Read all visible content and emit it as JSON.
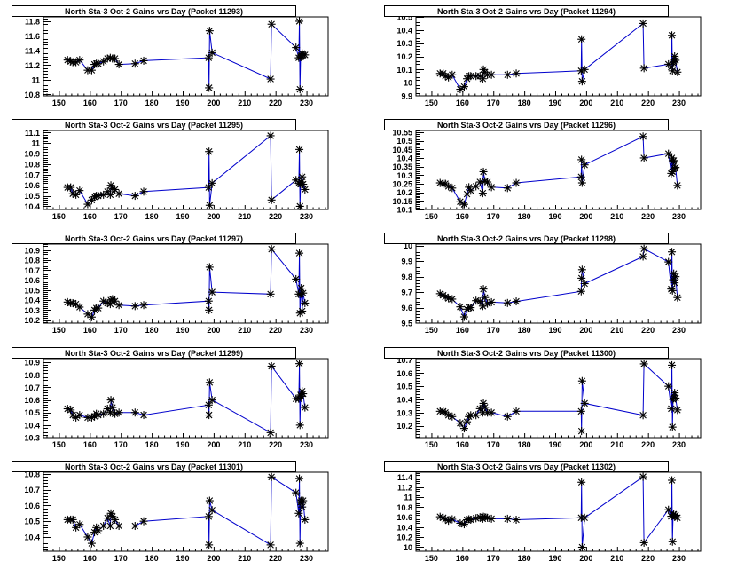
{
  "chart_data": [
    {
      "type": "line",
      "title": "North Sta-3 Oct-2 Gains vrs Day (Packet 11293)",
      "xlabel": "",
      "ylabel": "",
      "xlim": [
        145,
        237
      ],
      "ylim": [
        10.78,
        11.86
      ],
      "xticks": [
        150,
        160,
        170,
        180,
        190,
        200,
        210,
        220,
        230
      ],
      "yticks": [
        10.8,
        11,
        11.2,
        11.4,
        11.6,
        11.8
      ],
      "ytick_labels": [
        "10.8",
        "11",
        "11.2",
        "11.4",
        "11.6",
        "11.8"
      ],
      "line_color": "#0000cc",
      "marker": "asterisk",
      "x": [
        152.8,
        153.8,
        154.5,
        155.5,
        156.7,
        159.3,
        160.6,
        161.5,
        162.1,
        162.7,
        164.4,
        165.7,
        166.6,
        167.3,
        168.1,
        169.4,
        174.6,
        177.4,
        198.4,
        198.5,
        198.7,
        199.5,
        218.4,
        218.7,
        226.6,
        227.5,
        227.7,
        227.9,
        228.1,
        228.3,
        228.6,
        228.9,
        229.5
      ],
      "y": [
        11.27,
        11.25,
        11.24,
        11.24,
        11.27,
        11.13,
        11.13,
        11.21,
        11.22,
        11.22,
        11.25,
        11.29,
        11.3,
        11.29,
        11.29,
        11.21,
        11.22,
        11.26,
        11.3,
        10.89,
        11.67,
        11.37,
        11.01,
        11.76,
        11.44,
        11.3,
        11.8,
        10.87,
        11.31,
        11.33,
        11.36,
        11.34,
        11.34
      ]
    },
    {
      "type": "line",
      "title": "North Sta-3 Oct-2 Gains vrs Day (Packet 11294)",
      "xlabel": "",
      "ylabel": "",
      "xlim": [
        145,
        237
      ],
      "ylim": [
        9.9,
        10.5
      ],
      "xticks": [
        150,
        160,
        170,
        180,
        190,
        200,
        210,
        220,
        230
      ],
      "yticks": [
        9.9,
        10,
        10.1,
        10.2,
        10.3,
        10.4,
        10.5
      ],
      "ytick_labels": [
        "9.9",
        "10",
        "10.1",
        "10.2",
        "10.3",
        "10.4",
        "10.5"
      ],
      "line_color": "#0000cc",
      "marker": "asterisk",
      "x": [
        152.8,
        153.8,
        154.5,
        155.5,
        156.7,
        159.3,
        160.6,
        161.5,
        162.1,
        162.7,
        164.4,
        165.7,
        166.6,
        166.8,
        167.3,
        168.1,
        169.4,
        174.6,
        177.4,
        198.4,
        198.5,
        198.7,
        199.5,
        218.4,
        218.7,
        226.6,
        227.5,
        227.7,
        227.9,
        228.1,
        228.3,
        228.6,
        228.9,
        229.5
      ],
      "y": [
        10.07,
        10.07,
        10.05,
        10.04,
        10.06,
        9.95,
        9.97,
        10.03,
        10.05,
        10.05,
        10.05,
        10.05,
        10.03,
        10.1,
        10.08,
        10.06,
        10.06,
        10.06,
        10.07,
        10.09,
        10.33,
        10.01,
        10.1,
        10.45,
        10.11,
        10.14,
        10.12,
        10.36,
        10.09,
        10.15,
        10.16,
        10.2,
        10.17,
        10.08
      ]
    },
    {
      "type": "line",
      "title": "North Sta-3 Oct-2 Gains vrs Day (Packet 11295)",
      "xlabel": "",
      "ylabel": "",
      "xlim": [
        145,
        237
      ],
      "ylim": [
        10.37,
        11.12
      ],
      "xticks": [
        150,
        160,
        170,
        180,
        190,
        200,
        210,
        220,
        230
      ],
      "yticks": [
        10.4,
        10.5,
        10.6,
        10.7,
        10.8,
        10.9,
        11,
        11.1
      ],
      "ytick_labels": [
        "10.4",
        "10.5",
        "10.6",
        "10.7",
        "10.8",
        "10.9",
        "11",
        "11.1"
      ],
      "line_color": "#0000cc",
      "marker": "asterisk",
      "x": [
        152.8,
        153.8,
        154.5,
        155.5,
        156.7,
        159.3,
        160.6,
        161.5,
        162.1,
        162.7,
        164.4,
        165.7,
        166.6,
        166.8,
        167.3,
        168.1,
        169.4,
        174.6,
        177.4,
        198.4,
        198.5,
        198.7,
        199.5,
        218.4,
        218.7,
        226.6,
        227.5,
        227.7,
        227.9,
        228.1,
        228.3,
        228.6,
        228.9,
        229.5
      ],
      "y": [
        10.58,
        10.58,
        10.52,
        10.51,
        10.55,
        10.42,
        10.46,
        10.49,
        10.5,
        10.5,
        10.51,
        10.54,
        10.51,
        10.6,
        10.57,
        10.56,
        10.52,
        10.5,
        10.54,
        10.58,
        10.92,
        10.41,
        10.62,
        11.07,
        10.46,
        10.65,
        10.62,
        10.94,
        10.4,
        10.61,
        10.63,
        10.68,
        10.61,
        10.56
      ]
    },
    {
      "type": "line",
      "title": "North Sta-3 Oct-2 Gains vrs Day (Packet 11296)",
      "xlabel": "",
      "ylabel": "",
      "xlim": [
        145,
        237
      ],
      "ylim": [
        10.1,
        10.56
      ],
      "xticks": [
        150,
        160,
        170,
        180,
        190,
        200,
        210,
        220,
        230
      ],
      "yticks": [
        10.1,
        10.15,
        10.2,
        10.25,
        10.3,
        10.35,
        10.4,
        10.45,
        10.5,
        10.55
      ],
      "ytick_labels": [
        "10.1",
        "10.15",
        "10.2",
        "10.25",
        "10.3",
        "10.35",
        "10.4",
        "10.45",
        "10.5",
        "10.55"
      ],
      "line_color": "#0000cc",
      "marker": "asterisk",
      "x": [
        152.8,
        153.8,
        154.5,
        155.5,
        156.7,
        159.3,
        160.6,
        161.5,
        162.1,
        162.7,
        164.4,
        165.7,
        166.6,
        166.8,
        167.3,
        168.1,
        169.4,
        174.6,
        177.4,
        198.4,
        198.5,
        198.7,
        199.5,
        218.4,
        218.7,
        226.6,
        227.5,
        227.7,
        227.9,
        228.1,
        228.3,
        228.6,
        228.9,
        229.5
      ],
      "y": [
        10.255,
        10.25,
        10.25,
        10.235,
        10.225,
        10.145,
        10.13,
        10.19,
        10.23,
        10.21,
        10.235,
        10.26,
        10.195,
        10.32,
        10.265,
        10.26,
        10.23,
        10.225,
        10.255,
        10.29,
        10.39,
        10.255,
        10.36,
        10.525,
        10.4,
        10.425,
        10.31,
        10.4,
        10.32,
        10.38,
        10.385,
        10.34,
        10.345,
        10.24
      ]
    },
    {
      "type": "line",
      "title": "North Sta-3 Oct-2 Gains vrs Day (Packet 11297)",
      "xlabel": "",
      "ylabel": "",
      "xlim": [
        145,
        237
      ],
      "ylim": [
        10.17,
        10.96
      ],
      "xticks": [
        150,
        160,
        170,
        180,
        190,
        200,
        210,
        220,
        230
      ],
      "yticks": [
        10.2,
        10.3,
        10.4,
        10.5,
        10.6,
        10.7,
        10.8,
        10.9
      ],
      "ytick_labels": [
        "10.2",
        "10.3",
        "10.4",
        "10.5",
        "10.6",
        "10.7",
        "10.8",
        "10.9"
      ],
      "line_color": "#0000cc",
      "marker": "asterisk",
      "x": [
        152.8,
        153.8,
        154.5,
        155.5,
        156.7,
        159.3,
        160.6,
        161.5,
        162.1,
        162.7,
        164.4,
        165.7,
        166.6,
        166.8,
        167.3,
        168.1,
        169.4,
        174.6,
        177.4,
        198.4,
        198.5,
        198.7,
        199.5,
        218.4,
        218.7,
        226.6,
        227.5,
        227.7,
        227.9,
        228.1,
        228.3,
        228.6,
        228.9,
        229.5
      ],
      "y": [
        10.38,
        10.37,
        10.37,
        10.36,
        10.33,
        10.26,
        10.23,
        10.3,
        10.32,
        10.32,
        10.39,
        10.37,
        10.36,
        10.4,
        10.41,
        10.39,
        10.35,
        10.34,
        10.35,
        10.39,
        10.3,
        10.73,
        10.48,
        10.46,
        10.91,
        10.61,
        10.46,
        10.87,
        10.27,
        10.46,
        10.52,
        10.29,
        10.47,
        10.37
      ]
    },
    {
      "type": "line",
      "title": "North Sta-3 Oct-2 Gains vrs Day (Packet 11298)",
      "xlabel": "",
      "ylabel": "",
      "xlim": [
        145,
        237
      ],
      "ylim": [
        9.5,
        10.01
      ],
      "xticks": [
        150,
        160,
        170,
        180,
        190,
        200,
        210,
        220,
        230
      ],
      "yticks": [
        9.5,
        9.6,
        9.7,
        9.8,
        9.9,
        10
      ],
      "ytick_labels": [
        "9.5",
        "9.6",
        "9.7",
        "9.8",
        "9.9",
        "10"
      ],
      "line_color": "#0000cc",
      "marker": "asterisk",
      "x": [
        152.8,
        153.8,
        154.5,
        155.5,
        156.7,
        159.3,
        160.6,
        161.5,
        162.1,
        162.7,
        164.4,
        165.7,
        166.6,
        166.8,
        167.3,
        168.1,
        169.4,
        174.6,
        177.4,
        198.4,
        198.5,
        198.7,
        199.5,
        218.4,
        218.7,
        226.6,
        227.5,
        227.7,
        227.9,
        228.1,
        228.3,
        228.6,
        228.9,
        229.5
      ],
      "y": [
        9.69,
        9.68,
        9.67,
        9.66,
        9.655,
        9.605,
        9.54,
        9.59,
        9.6,
        9.6,
        9.645,
        9.64,
        9.61,
        9.72,
        9.665,
        9.625,
        9.635,
        9.63,
        9.64,
        9.705,
        9.79,
        9.845,
        9.755,
        9.93,
        9.98,
        9.895,
        9.72,
        9.96,
        9.71,
        9.78,
        9.82,
        9.76,
        9.8,
        9.665
      ]
    },
    {
      "type": "line",
      "title": "North Sta-3 Oct-2 Gains vrs Day (Packet 11299)",
      "xlabel": "",
      "ylabel": "",
      "xlim": [
        145,
        237
      ],
      "ylim": [
        10.3,
        10.93
      ],
      "xticks": [
        150,
        160,
        170,
        180,
        190,
        200,
        210,
        220,
        230
      ],
      "yticks": [
        10.3,
        10.4,
        10.5,
        10.6,
        10.7,
        10.8,
        10.9
      ],
      "ytick_labels": [
        "10.3",
        "10.4",
        "10.5",
        "10.6",
        "10.7",
        "10.8",
        "10.9"
      ],
      "line_color": "#0000cc",
      "marker": "asterisk",
      "x": [
        152.8,
        153.8,
        154.5,
        155.5,
        156.7,
        159.3,
        160.6,
        161.5,
        162.1,
        162.7,
        164.4,
        165.7,
        166.6,
        166.8,
        167.3,
        168.1,
        169.4,
        174.6,
        177.4,
        198.4,
        198.5,
        198.7,
        199.5,
        218.4,
        218.7,
        226.6,
        227.5,
        227.7,
        227.9,
        228.1,
        228.3,
        228.6,
        228.9,
        229.5
      ],
      "y": [
        10.53,
        10.52,
        10.48,
        10.46,
        10.48,
        10.46,
        10.46,
        10.47,
        10.49,
        10.48,
        10.49,
        10.53,
        10.5,
        10.6,
        10.54,
        10.49,
        10.5,
        10.5,
        10.48,
        10.56,
        10.48,
        10.74,
        10.6,
        10.34,
        10.87,
        10.61,
        10.61,
        10.89,
        10.4,
        10.64,
        10.63,
        10.67,
        10.65,
        10.54
      ]
    },
    {
      "type": "line",
      "title": "North Sta-3 Oct-2 Gains vrs Day (Packet 11300)",
      "xlabel": "",
      "ylabel": "",
      "xlim": [
        145,
        237
      ],
      "ylim": [
        10.11,
        10.71
      ],
      "xticks": [
        150,
        160,
        170,
        180,
        190,
        200,
        210,
        220,
        230
      ],
      "yticks": [
        10.2,
        10.3,
        10.4,
        10.5,
        10.6,
        10.7
      ],
      "ytick_labels": [
        "10.2",
        "10.3",
        "10.4",
        "10.5",
        "10.6",
        "10.7"
      ],
      "line_color": "#0000cc",
      "marker": "asterisk",
      "x": [
        152.8,
        153.8,
        154.5,
        155.5,
        156.7,
        159.3,
        160.6,
        161.5,
        162.1,
        162.7,
        164.4,
        165.7,
        166.6,
        166.8,
        167.3,
        168.1,
        169.4,
        174.6,
        177.4,
        198.4,
        198.5,
        198.7,
        199.5,
        218.4,
        218.7,
        226.6,
        227.5,
        227.7,
        227.9,
        228.1,
        228.3,
        228.6,
        228.9,
        229.5
      ],
      "y": [
        10.31,
        10.31,
        10.3,
        10.28,
        10.27,
        10.22,
        10.18,
        10.23,
        10.27,
        10.28,
        10.28,
        10.33,
        10.3,
        10.37,
        10.34,
        10.3,
        10.3,
        10.27,
        10.31,
        10.31,
        10.16,
        10.54,
        10.37,
        10.28,
        10.67,
        10.5,
        10.33,
        10.66,
        10.19,
        10.4,
        10.41,
        10.45,
        10.41,
        10.32
      ]
    },
    {
      "type": "line",
      "title": "North Sta-3 Oct-2 Gains vrs Day (Packet 11301)",
      "xlabel": "",
      "ylabel": "",
      "xlim": [
        145,
        237
      ],
      "ylim": [
        10.31,
        10.81
      ],
      "xticks": [
        150,
        160,
        170,
        180,
        190,
        200,
        210,
        220,
        230
      ],
      "yticks": [
        10.4,
        10.5,
        10.6,
        10.7,
        10.8
      ],
      "ytick_labels": [
        "10.4",
        "10.5",
        "10.6",
        "10.7",
        "10.8"
      ],
      "line_color": "#0000cc",
      "marker": "asterisk",
      "x": [
        152.8,
        153.8,
        154.5,
        155.5,
        156.7,
        159.3,
        160.6,
        161.5,
        162.1,
        162.7,
        164.4,
        165.7,
        166.6,
        166.8,
        167.3,
        168.1,
        169.4,
        174.6,
        177.4,
        198.4,
        198.5,
        198.7,
        199.5,
        218.4,
        218.7,
        226.6,
        227.5,
        227.7,
        227.9,
        228.1,
        228.3,
        228.6,
        228.9,
        229.5
      ],
      "y": [
        10.51,
        10.51,
        10.51,
        10.46,
        10.48,
        10.4,
        10.36,
        10.43,
        10.46,
        10.44,
        10.47,
        10.52,
        10.47,
        10.55,
        10.53,
        10.51,
        10.47,
        10.47,
        10.5,
        10.53,
        10.35,
        10.63,
        10.57,
        10.35,
        10.78,
        10.68,
        10.55,
        10.77,
        10.36,
        10.62,
        10.63,
        10.59,
        10.63,
        10.51
      ]
    },
    {
      "type": "line",
      "title": "North Sta-3 Oct-2 Gains vrs Day (Packet 11302)",
      "xlabel": "",
      "ylabel": "",
      "xlim": [
        145,
        237
      ],
      "ylim": [
        9.92,
        11.5
      ],
      "xticks": [
        150,
        160,
        170,
        180,
        190,
        200,
        210,
        220,
        230
      ],
      "yticks": [
        10,
        10.2,
        10.4,
        10.6,
        10.8,
        11,
        11.2,
        11.4
      ],
      "ytick_labels": [
        "10",
        "10.2",
        "10.4",
        "10.6",
        "10.8",
        "11",
        "11.2",
        "11.4"
      ],
      "line_color": "#0000cc",
      "marker": "asterisk",
      "x": [
        152.8,
        153.8,
        154.5,
        155.5,
        156.7,
        159.3,
        160.6,
        161.5,
        162.1,
        162.7,
        164.4,
        165.7,
        166.6,
        166.8,
        167.3,
        168.1,
        169.4,
        174.6,
        177.4,
        198.4,
        198.5,
        198.7,
        199.5,
        218.4,
        218.7,
        226.6,
        227.5,
        227.7,
        227.9,
        228.1,
        228.3,
        228.6,
        228.9,
        229.5
      ],
      "y": [
        10.61,
        10.59,
        10.56,
        10.53,
        10.56,
        10.48,
        10.46,
        10.55,
        10.56,
        10.55,
        10.58,
        10.6,
        10.57,
        10.61,
        10.6,
        10.59,
        10.57,
        10.57,
        10.55,
        10.59,
        11.3,
        10.0,
        10.59,
        11.41,
        10.09,
        10.75,
        10.62,
        11.34,
        10.11,
        10.64,
        10.66,
        10.61,
        10.64,
        10.59
      ]
    }
  ]
}
